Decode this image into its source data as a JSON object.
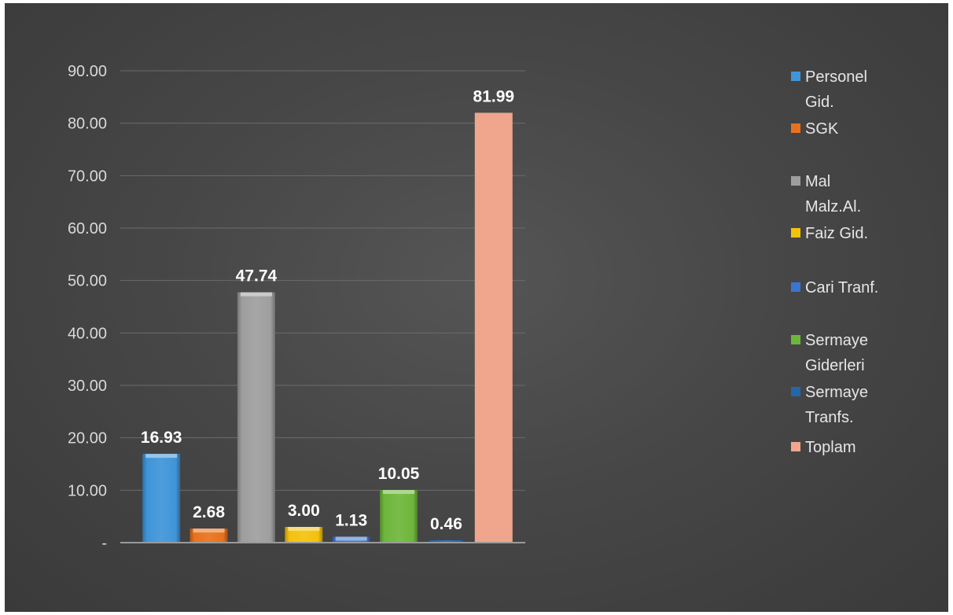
{
  "chart_data": {
    "type": "bar",
    "title": "",
    "xlabel": "",
    "ylabel": "",
    "ylim": [
      0,
      90
    ],
    "yticks": [
      "-",
      "10.00",
      "20.00",
      "30.00",
      "40.00",
      "50.00",
      "60.00",
      "70.00",
      "80.00",
      "90.00"
    ],
    "grid": true,
    "legend_position": "right",
    "categories": [
      {
        "name": "Personel Gid.",
        "legend_lines": [
          "Personel",
          "Gid."
        ],
        "value": 16.93,
        "label": "16.93",
        "color": "#3f95d8"
      },
      {
        "name": "SGK",
        "legend_lines": [
          "SGK"
        ],
        "value": 2.68,
        "label": "2.68",
        "color": "#e8721c"
      },
      {
        "name": "Mal Malz.Al.",
        "legend_lines": [
          "Mal",
          "Malz.Al."
        ],
        "value": 47.74,
        "label": "47.74",
        "color": "#9e9e9e"
      },
      {
        "name": "Faiz Gid.",
        "legend_lines": [
          "Faiz Gid."
        ],
        "value": 3.0,
        "label": "3.00",
        "color": "#f4c20d"
      },
      {
        "name": "Cari Tranf.",
        "legend_lines": [
          "Cari Tranf."
        ],
        "value": 1.13,
        "label": "1.13",
        "color": "#3c74d4"
      },
      {
        "name": "Sermaye Giderleri",
        "legend_lines": [
          "Sermaye",
          "Giderleri"
        ],
        "value": 10.05,
        "label": "10.05",
        "color": "#6db63b"
      },
      {
        "name": "Sermaye Tranfs.",
        "legend_lines": [
          "Sermaye",
          "Tranfs."
        ],
        "value": 0.46,
        "label": "0.46",
        "color": "#2366aa"
      },
      {
        "name": "Toplam",
        "legend_lines": [
          "Toplam"
        ],
        "value": 81.99,
        "label": "81.99",
        "color": "#efa68c"
      }
    ],
    "colors": {
      "background": "#474747",
      "gridline": "#6b6b6b",
      "axis": "#9a9a9a",
      "tick_text": "#d9d9d9",
      "label_text": "#ffffff",
      "legend_text": "#e6e6e6"
    }
  }
}
